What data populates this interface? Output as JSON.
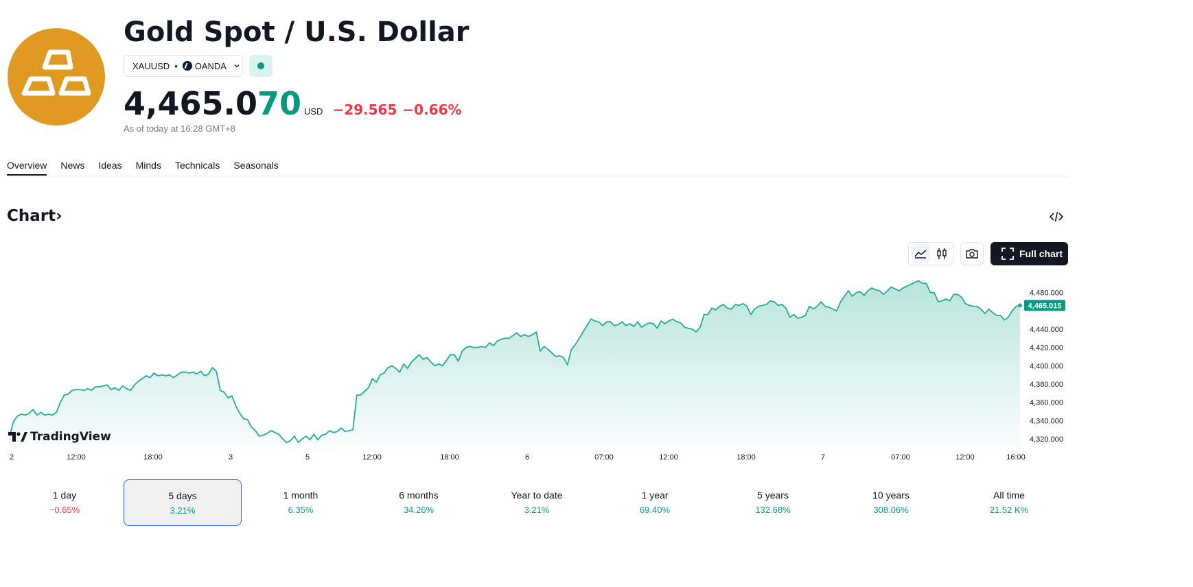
{
  "header": {
    "title": "Gold Spot / U.S. Dollar",
    "symbol": "XAUUSD",
    "separator": "•",
    "exchange": "OANDA",
    "logo_icon": "gold-bars-icon",
    "status_icon": "live-dot-icon"
  },
  "quote": {
    "price_main": "4,465.0",
    "price_tail": "70",
    "currency": "USD",
    "change": "−29.565",
    "change_pct": "−0.66%",
    "as_of": "As of today at 16:28 GMT+8"
  },
  "tabs": [
    {
      "label": "Overview",
      "active": true
    },
    {
      "label": "News",
      "active": false
    },
    {
      "label": "Ideas",
      "active": false
    },
    {
      "label": "Minds",
      "active": false
    },
    {
      "label": "Technicals",
      "active": false
    },
    {
      "label": "Seasonals",
      "active": false
    }
  ],
  "chart_section": {
    "heading": "Chart",
    "heading_arrow": "›",
    "embed_icon": "code-embed-icon",
    "toolbar": {
      "area_icon": "area-chart-icon",
      "candle_icon": "candlestick-icon",
      "camera_icon": "camera-icon",
      "fullscreen_icon": "fullscreen-icon",
      "full_chart_label": "Full chart"
    },
    "watermark": "TradingView"
  },
  "colors": {
    "positive": "#089981",
    "negative": "#F23645",
    "line": "#22AB94",
    "logo": "#E09A22",
    "selected_border": "#2962FF"
  },
  "chart_data": {
    "type": "area",
    "series": [
      {
        "values": [
          4323,
          4339,
          4345,
          4347,
          4346,
          4348,
          4352,
          4346,
          4349,
          4346,
          4347,
          4346,
          4349,
          4360,
          4368,
          4369,
          4373,
          4374,
          4374,
          4373,
          4375,
          4373,
          4377,
          4377,
          4378,
          4379,
          4374,
          4376,
          4373,
          4378,
          4375,
          4373,
          4379,
          4383,
          4386,
          4389,
          4387,
          4392,
          4389,
          4390,
          4389,
          4390,
          4387,
          4390,
          4393,
          4393,
          4392,
          4393,
          4391,
          4394,
          4389,
          4391,
          4398,
          4394,
          4373,
          4371,
          4365,
          4367,
          4356,
          4348,
          4342,
          4341,
          4333,
          4329,
          4323,
          4324,
          4326,
          4329,
          4327,
          4325,
          4320,
          4316,
          4318,
          4323,
          4316,
          4320,
          4323,
          4319,
          4325,
          4319,
          4324,
          4325,
          4329,
          4327,
          4328,
          4332,
          4328,
          4329,
          4330,
          4368,
          4368,
          4372,
          4376,
          4386,
          4382,
          4390,
          4392,
          4398,
          4400,
          4397,
          4393,
          4402,
          4397,
          4404,
          4408,
          4412,
          4407,
          4409,
          4404,
          4400,
          4402,
          4400,
          4406,
          4412,
          4412,
          4405,
          4416,
          4420,
          4421,
          4420,
          4420,
          4421,
          4420,
          4425,
          4422,
          4427,
          4429,
          4430,
          4430,
          4433,
          4436,
          4432,
          4434,
          4432,
          4434,
          4437,
          4416,
          4421,
          4418,
          4414,
          4410,
          4411,
          4409,
          4401,
          4418,
          4423,
          4430,
          4437,
          4444,
          4451,
          4449,
          4448,
          4444,
          4448,
          4448,
          4444,
          4445,
          4448,
          4444,
          4446,
          4443,
          4448,
          4442,
          4445,
          4447,
          4446,
          4441,
          4449,
          4446,
          4449,
          4451,
          4448,
          4447,
          4442,
          4441,
          4440,
          4437,
          4442,
          4456,
          4456,
          4463,
          4461,
          4465,
          4467,
          4463,
          4462,
          4467,
          4466,
          4468,
          4465,
          4456,
          4462,
          4465,
          4466,
          4467,
          4471,
          4470,
          4466,
          4467,
          4463,
          4453,
          4456,
          4452,
          4453,
          4455,
          4465,
          4462,
          4465,
          4470,
          4465,
          4464,
          4462,
          4460,
          4470,
          4476,
          4482,
          4476,
          4480,
          4481,
          4477,
          4482,
          4485,
          4483,
          4482,
          4478,
          4482,
          4486,
          4484,
          4482,
          4485,
          4487,
          4489,
          4491,
          4493,
          4490,
          4490,
          4480,
          4480,
          4470,
          4471,
          4473,
          4471,
          4478,
          4478,
          4475,
          4468,
          4466,
          4465,
          4465,
          4462,
          4457,
          4462,
          4458,
          4455,
          4455,
          4450,
          4453,
          4460,
          4465,
          4466
        ],
        "last_label": "4,465.015"
      }
    ],
    "x_ticks": [
      "2",
      "12:00",
      "18:00",
      "3",
      "5",
      "12:00",
      "18:00",
      "6",
      "07:00",
      "12:00",
      "18:00",
      "7",
      "07:00",
      "12:00",
      "16:00"
    ],
    "y_ticks": [
      "4,320.000",
      "4,340.000",
      "4,360.000",
      "4,380.000",
      "4,400.000",
      "4,420.000",
      "4,440.000",
      "4,480.000"
    ],
    "ylim": [
      4308,
      4500
    ],
    "ylabel": "",
    "xlabel": "",
    "grid": false
  },
  "periods": [
    {
      "label": "1 day",
      "value": "−0.65%",
      "dir": "neg",
      "selected": false
    },
    {
      "label": "5 days",
      "value": "3.21%",
      "dir": "pos",
      "selected": true
    },
    {
      "label": "1 month",
      "value": "6.35%",
      "dir": "pos",
      "selected": false
    },
    {
      "label": "6 months",
      "value": "34.26%",
      "dir": "pos",
      "selected": false
    },
    {
      "label": "Year to date",
      "value": "3.21%",
      "dir": "pos",
      "selected": false
    },
    {
      "label": "1 year",
      "value": "69.40%",
      "dir": "pos",
      "selected": false
    },
    {
      "label": "5 years",
      "value": "132.68%",
      "dir": "pos",
      "selected": false
    },
    {
      "label": "10 years",
      "value": "308.06%",
      "dir": "pos",
      "selected": false
    },
    {
      "label": "All time",
      "value": "21.52 K%",
      "dir": "pos",
      "selected": false
    }
  ]
}
